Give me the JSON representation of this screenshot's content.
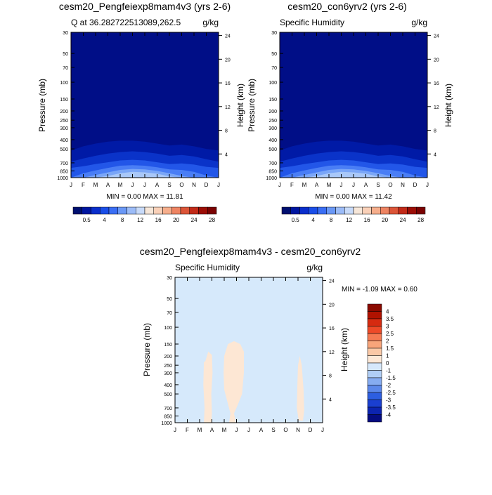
{
  "months": [
    "J",
    "F",
    "M",
    "A",
    "M",
    "J",
    "J",
    "A",
    "S",
    "O",
    "N",
    "D",
    "J"
  ],
  "pressure_ticks": [
    30,
    50,
    70,
    100,
    150,
    200,
    250,
    300,
    400,
    500,
    700,
    850,
    1000
  ],
  "height_ticks": [
    4,
    8,
    12,
    16,
    20,
    24
  ],
  "axis_labels": {
    "pressure": "Pressure (mb)",
    "height": "Height (km)"
  },
  "colorbar_labels": [
    "0.5",
    "4",
    "8",
    "12",
    "16",
    "20",
    "24",
    "28"
  ],
  "diff_colorbar_labels": [
    "4",
    "3.5",
    "3",
    "2.5",
    "2",
    "1.5",
    "1",
    "0",
    "-1",
    "-1.5",
    "-2",
    "-2.5",
    "-3",
    "-3.5",
    "-4"
  ],
  "colors": {
    "top_levels": [
      "#000e87",
      "#001aa6",
      "#0a33c9",
      "#2256e8",
      "#4a7ef5",
      "#7aa6f7",
      "#a9c8f8"
    ],
    "top_colorbar": [
      "#001070",
      "#0016a0",
      "#0a2ecc",
      "#1a4ee8",
      "#3a6ef4",
      "#6a98f6",
      "#9cbcf8",
      "#c8daf9",
      "#f6e6d8",
      "#f9d0b8",
      "#f6ae8c",
      "#ee8462",
      "#dc5538",
      "#c22a18",
      "#9c0e06",
      "#7a0202"
    ],
    "diff_colorbar": [
      "#8a0a00",
      "#b01200",
      "#d62a10",
      "#ee4a28",
      "#f57a52",
      "#f8a57a",
      "#fac8a6",
      "#fde8d6",
      "#d6e8fb",
      "#b0cef6",
      "#86acf1",
      "#5c88ea",
      "#2d5ee0",
      "#1a3fd0",
      "#0c24b0",
      "#050c80"
    ],
    "diff_background": "#d6e9fb",
    "diff_positive": "#fde7d4"
  },
  "chart_data": [
    {
      "type": "heatmap",
      "title": "cesm20_Pengfeiexp8mam4v3 (yrs 2-6)",
      "subtitle_left": "Q at 36.282722513089,262.5",
      "units": "g/kg",
      "xlabel": "",
      "ylabel": "Pressure (mb)",
      "ylabel_right": "Height (km)",
      "min_max_text": "MIN =   0.00 MAX =  11.81",
      "min": 0.0,
      "max": 11.81,
      "contour_tops_mb": [
        [
          520,
          470,
          440,
          420,
          410,
          410,
          420,
          440,
          460,
          450,
          470,
          500,
          520
        ],
        [
          680,
          630,
          590,
          560,
          540,
          530,
          540,
          560,
          590,
          580,
          600,
          640,
          680
        ],
        [
          790,
          760,
          720,
          690,
          660,
          650,
          660,
          690,
          720,
          710,
          730,
          770,
          790
        ],
        [
          1000,
          900,
          840,
          790,
          750,
          740,
          750,
          780,
          820,
          830,
          870,
          950,
          1000
        ],
        [
          1000,
          1000,
          940,
          880,
          830,
          810,
          820,
          850,
          900,
          960,
          1000,
          1000,
          1000
        ],
        [
          1000,
          1000,
          1000,
          960,
          900,
          870,
          880,
          910,
          970,
          1000,
          1000,
          1000,
          1000
        ]
      ]
    },
    {
      "type": "heatmap",
      "title": "cesm20_con6yrv2 (yrs 2-6)",
      "subtitle_left": "Specific Humidity",
      "units": "g/kg",
      "xlabel": "",
      "ylabel": "Pressure (mb)",
      "ylabel_right": "Height (km)",
      "min_max_text": "MIN =   0.00 MAX =  11.42",
      "min": 0.0,
      "max": 11.42,
      "contour_tops_mb": [
        [
          520,
          470,
          440,
          420,
          410,
          410,
          420,
          440,
          460,
          450,
          470,
          500,
          520
        ],
        [
          680,
          630,
          590,
          560,
          540,
          530,
          540,
          560,
          590,
          580,
          600,
          640,
          680
        ],
        [
          790,
          760,
          720,
          690,
          660,
          650,
          660,
          690,
          720,
          710,
          730,
          770,
          790
        ],
        [
          1000,
          900,
          840,
          790,
          750,
          740,
          750,
          780,
          820,
          830,
          870,
          950,
          1000
        ],
        [
          1000,
          1000,
          940,
          880,
          830,
          810,
          820,
          850,
          900,
          960,
          1000,
          1000,
          1000
        ],
        [
          1000,
          1000,
          1000,
          960,
          900,
          870,
          880,
          910,
          970,
          1000,
          1000,
          1000,
          1000
        ]
      ]
    },
    {
      "type": "heatmap",
      "title": "cesm20_Pengfeiexp8mam4v3 - cesm20_con6yrv2",
      "subtitle_left": "Specific Humidity",
      "units": "g/kg",
      "xlabel": "",
      "ylabel": "Pressure (mb)",
      "ylabel_right": "Height (km)",
      "min_max_text": "MIN =  -1.09 MAX =   0.60",
      "min": -1.09,
      "max": 0.6,
      "positive_regions": [
        [
          [
            2.45,
            230
          ],
          [
            2.7,
            180
          ],
          [
            3.0,
            195
          ],
          [
            3.05,
            300
          ],
          [
            2.95,
            500
          ],
          [
            3.0,
            800
          ],
          [
            2.95,
            1000
          ],
          [
            2.35,
            1000
          ],
          [
            2.4,
            700
          ],
          [
            2.3,
            400
          ],
          [
            2.35,
            230
          ]
        ],
        [
          [
            4.0,
            200
          ],
          [
            4.3,
            150
          ],
          [
            4.8,
            140
          ],
          [
            5.3,
            150
          ],
          [
            5.6,
            180
          ],
          [
            5.6,
            300
          ],
          [
            5.45,
            500
          ],
          [
            5.1,
            650
          ],
          [
            4.8,
            800
          ],
          [
            4.95,
            1000
          ],
          [
            4.4,
            1000
          ],
          [
            4.5,
            800
          ],
          [
            4.25,
            600
          ],
          [
            4.0,
            450
          ],
          [
            3.95,
            300
          ]
        ],
        [
          [
            10.0,
            250
          ],
          [
            10.15,
            200
          ],
          [
            10.3,
            250
          ],
          [
            10.45,
            450
          ],
          [
            10.5,
            750
          ],
          [
            10.4,
            950
          ],
          [
            10.05,
            950
          ],
          [
            9.9,
            700
          ],
          [
            9.95,
            400
          ]
        ]
      ]
    }
  ]
}
